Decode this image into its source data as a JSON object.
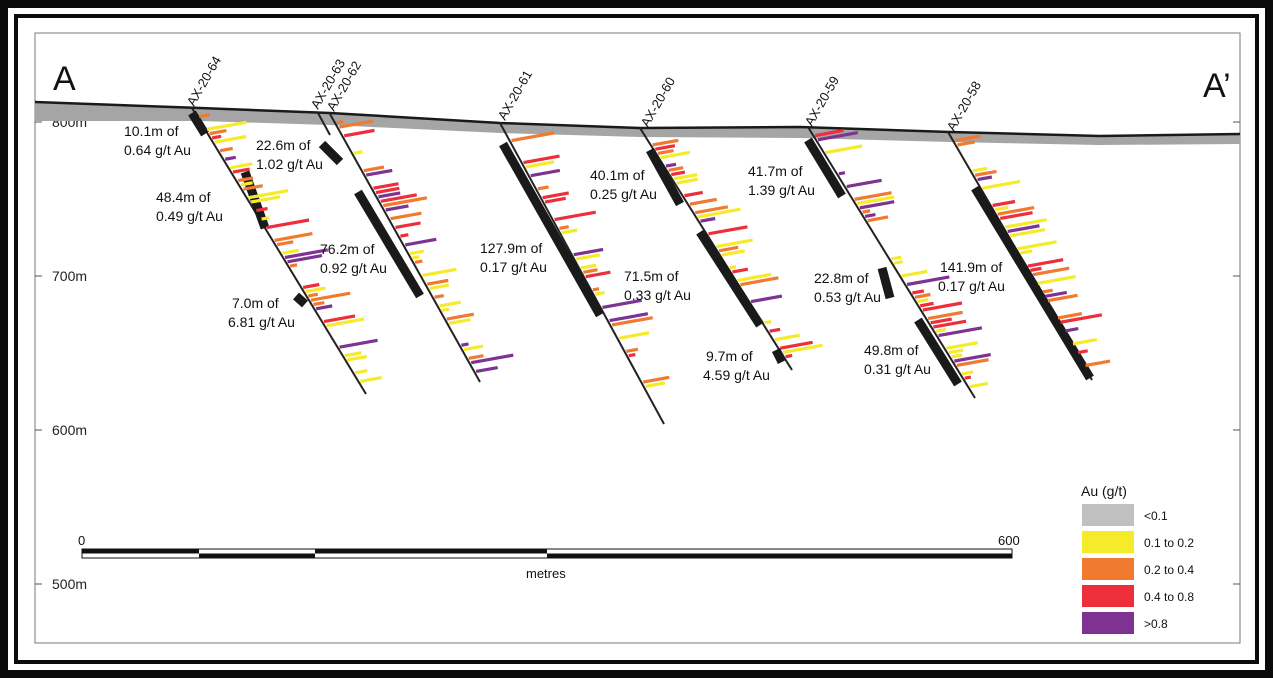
{
  "section": {
    "left_label": "A",
    "right_label": "A’"
  },
  "elevations": [
    "800m",
    "700m",
    "600m",
    "500m"
  ],
  "scale_bar": {
    "start": "0",
    "end": "600",
    "unit": "metres"
  },
  "legend": {
    "title": "Au (g/t)",
    "items": [
      {
        "label": "<0.1",
        "color": "#c0c0c0"
      },
      {
        "label": "0.1 to 0.2",
        "color": "#f5eb2a"
      },
      {
        "label": "0.2 to 0.4",
        "color": "#f07a30"
      },
      {
        "label": "0.4 to 0.8",
        "color": "#ec2f3a"
      },
      {
        "label": ">0.8",
        "color": "#7e3393"
      }
    ]
  },
  "drillholes": [
    {
      "name": "AX-20-64",
      "intercepts": [
        {
          "line1": "10.1m of",
          "line2": "0.64 g/t Au"
        },
        {
          "line1": "48.4m of",
          "line2": "0.49 g/t Au"
        },
        {
          "line1": "7.0m of",
          "line2": "6.81 g/t Au"
        }
      ]
    },
    {
      "name": "AX-20-63",
      "intercepts": []
    },
    {
      "name": "AX-20-62",
      "intercepts": [
        {
          "line1": "22.6m of",
          "line2": "1.02 g/t Au"
        },
        {
          "line1": "76.2m of",
          "line2": "0.92 g/t Au"
        }
      ]
    },
    {
      "name": "AX-20-61",
      "intercepts": [
        {
          "line1": "127.9m of",
          "line2": "0.17 g/t Au"
        }
      ]
    },
    {
      "name": "AX-20-60",
      "intercepts": [
        {
          "line1": "40.1m of",
          "line2": "0.25 g/t Au"
        },
        {
          "line1": "71.5m of",
          "line2": "0.33 g/t Au"
        },
        {
          "line1": "9.7m of",
          "line2": "4.59 g/t Au"
        }
      ]
    },
    {
      "name": "AX-20-59",
      "intercepts": [
        {
          "line1": "41.7m of",
          "line2": "1.39 g/t Au"
        },
        {
          "line1": "22.8m of",
          "line2": "0.53 g/t Au"
        },
        {
          "line1": "49.8m of",
          "line2": "0.31 g/t Au"
        }
      ]
    },
    {
      "name": "AX-20-58",
      "intercepts": [
        {
          "line1": "141.9m of",
          "line2": "0.17 g/t Au"
        }
      ]
    }
  ],
  "hole_depth_ticks": [
    "50",
    "100",
    "150",
    "200"
  ]
}
